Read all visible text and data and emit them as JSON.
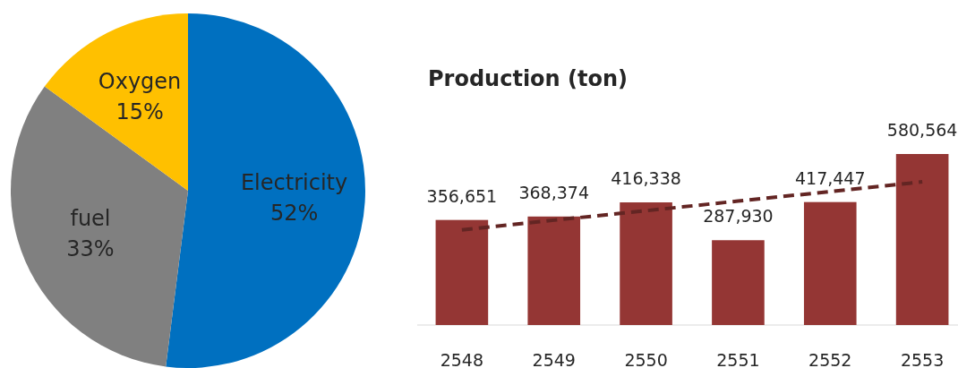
{
  "chart_data": [
    {
      "type": "pie",
      "categories": [
        "Electricity",
        "fuel",
        "Oxygen"
      ],
      "values": [
        52,
        33,
        15
      ],
      "value_labels": [
        "52%",
        "33%",
        "15%"
      ],
      "colors": [
        "#0070c0",
        "#808080",
        "#ffc000"
      ]
    },
    {
      "type": "bar",
      "title": "Production (ton)",
      "categories": [
        "2548",
        "2549",
        "2550",
        "2551",
        "2552",
        "2553"
      ],
      "series": [
        {
          "type": "bar",
          "color": "#943634",
          "values": [
            356651,
            368374,
            416338,
            287930,
            417447,
            580564
          ],
          "value_labels": [
            "356,651",
            "368,374",
            "416,338",
            "287,930",
            "417,447",
            "580,564"
          ]
        },
        {
          "type": "line",
          "color": "#632523",
          "line_style": "dashed",
          "values": [
            323000,
            356000,
            388000,
            421000,
            453000,
            486000
          ]
        }
      ]
    }
  ]
}
